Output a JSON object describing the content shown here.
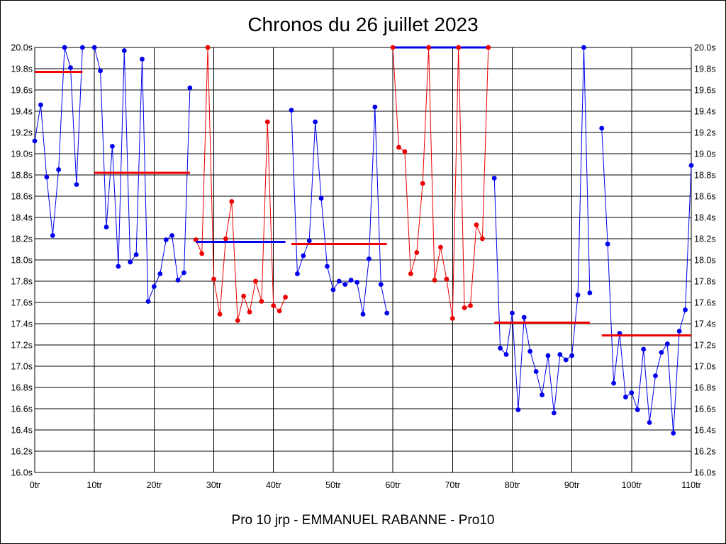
{
  "title": "Chronos du 26 juillet 2023",
  "footer": "Pro 10 jrp - EMMANUEL RABANNE - Pro10",
  "colors": {
    "blue": "#0000ee",
    "red": "#ee0000",
    "grid": "#000000"
  },
  "chart_data": {
    "type": "line",
    "title": "Chronos du 26 juillet 2023",
    "xlabel": "",
    "ylabel": "",
    "xlim": [
      0,
      110
    ],
    "ylim": [
      16.0,
      20.0
    ],
    "x_ticks": [
      0,
      10,
      20,
      30,
      40,
      50,
      60,
      70,
      80,
      90,
      100,
      110
    ],
    "x_tick_labels": [
      "0tr",
      "10tr",
      "20tr",
      "30tr",
      "40tr",
      "50tr",
      "60tr",
      "70tr",
      "80tr",
      "90tr",
      "100tr",
      "110tr"
    ],
    "y_ticks": [
      16.0,
      16.2,
      16.4,
      16.6,
      16.8,
      17.0,
      17.2,
      17.4,
      17.6,
      17.8,
      18.0,
      18.2,
      18.4,
      18.6,
      18.8,
      19.0,
      19.2,
      19.4,
      19.6,
      19.8,
      20.0
    ],
    "y_tick_labels": [
      "16.0s",
      "16.2s",
      "16.4s",
      "16.6s",
      "16.8s",
      "17.0s",
      "17.2s",
      "17.4s",
      "17.6s",
      "17.8s",
      "18.0s",
      "18.2s",
      "18.4s",
      "18.6s",
      "18.8s",
      "19.0s",
      "19.2s",
      "19.4s",
      "19.6s",
      "19.8s",
      "20.0s"
    ],
    "grid": true,
    "series": [
      {
        "color": "blue",
        "x": [
          0,
          1,
          2,
          3,
          4,
          5,
          6,
          7,
          8
        ],
        "y": [
          19.12,
          19.46,
          18.78,
          18.23,
          18.85,
          20.0,
          19.81,
          18.71,
          20.0
        ]
      },
      {
        "color": "blue",
        "x": [
          10,
          11,
          12,
          13,
          14,
          15,
          16,
          17,
          18,
          19,
          20,
          21,
          22,
          23,
          24,
          25,
          26
        ],
        "y": [
          20.0,
          19.78,
          18.31,
          19.07,
          17.94,
          19.97,
          17.98,
          18.05,
          19.89,
          17.61,
          17.75,
          17.87,
          18.19,
          18.23,
          17.81,
          17.88,
          19.62
        ]
      },
      {
        "color": "red",
        "x": [
          27,
          28,
          29,
          30,
          31,
          32,
          33,
          34,
          35,
          36,
          37,
          38,
          39,
          40,
          41,
          42
        ],
        "y": [
          18.19,
          18.06,
          20.0,
          17.82,
          17.49,
          18.2,
          18.55,
          17.43,
          17.66,
          17.51,
          17.8,
          17.61,
          19.3,
          17.57,
          17.52,
          17.65
        ]
      },
      {
        "color": "blue",
        "x": [
          43,
          44,
          45,
          46,
          47,
          48,
          49,
          50,
          51,
          52,
          53,
          54,
          55,
          56,
          57,
          58,
          59
        ],
        "y": [
          19.41,
          17.87,
          18.04,
          18.18,
          19.3,
          18.58,
          17.94,
          17.72,
          17.8,
          17.77,
          17.81,
          17.79,
          17.49,
          18.01,
          19.44,
          17.77,
          17.5
        ]
      },
      {
        "color": "red",
        "x": [
          60,
          61,
          62,
          63,
          64,
          65,
          66,
          67,
          68,
          69,
          70,
          71,
          72,
          73,
          74,
          75,
          76
        ],
        "y": [
          20.0,
          19.06,
          19.02,
          17.87,
          18.07,
          18.72,
          20.0,
          17.81,
          18.12,
          17.82,
          17.45,
          20.0,
          17.55,
          17.57,
          18.33,
          18.2,
          20.0
        ]
      },
      {
        "color": "blue",
        "x": [
          77,
          78,
          79,
          80,
          81,
          82,
          83,
          84,
          85,
          86,
          87,
          88,
          89,
          90,
          91,
          92,
          93
        ],
        "y": [
          18.77,
          17.17,
          17.11,
          17.5,
          16.59,
          17.46,
          17.14,
          16.95,
          16.73,
          17.1,
          16.56,
          17.11,
          17.06,
          17.1,
          17.67,
          20.0,
          17.69
        ]
      },
      {
        "color": "blue",
        "x": [
          95,
          96,
          97,
          98,
          99,
          100,
          101,
          102,
          103,
          104,
          105,
          106,
          107,
          108,
          109,
          110
        ],
        "y": [
          19.24,
          18.15,
          16.84,
          17.31,
          16.71,
          16.75,
          16.59,
          17.16,
          16.47,
          16.91,
          17.13,
          17.21,
          16.37,
          17.33,
          17.53,
          18.89
        ]
      }
    ],
    "segments": [
      {
        "color": "blue",
        "x": [
          60,
          76
        ],
        "y": 20.0
      }
    ],
    "averages": [
      {
        "color": "red",
        "x": [
          0,
          8
        ],
        "y": 19.77
      },
      {
        "color": "red",
        "x": [
          10,
          26
        ],
        "y": 18.82
      },
      {
        "color": "blue",
        "x": [
          27,
          42
        ],
        "y": 18.17
      },
      {
        "color": "red",
        "x": [
          43,
          59
        ],
        "y": 18.15
      },
      {
        "color": "red",
        "x": [
          77,
          93
        ],
        "y": 17.41
      },
      {
        "color": "red",
        "x": [
          95,
          110
        ],
        "y": 17.29
      }
    ]
  }
}
